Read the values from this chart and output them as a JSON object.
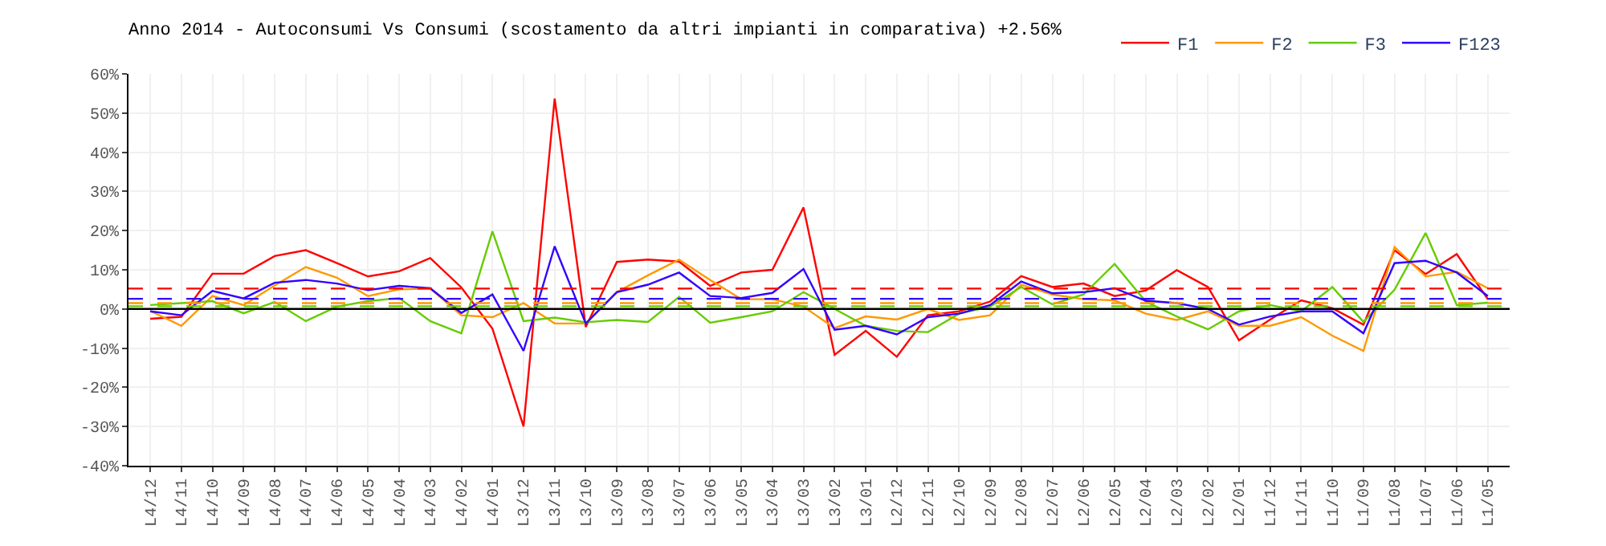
{
  "chart_data": {
    "type": "line",
    "title": "Anno 2014 - Autoconsumi Vs Consumi (scostamento da altri impianti in comparativa) +2.56%",
    "categories": [
      "L4/12",
      "L4/11",
      "L4/10",
      "L4/09",
      "L4/08",
      "L4/07",
      "L4/06",
      "L4/05",
      "L4/04",
      "L4/03",
      "L4/02",
      "L4/01",
      "L3/12",
      "L3/11",
      "L3/10",
      "L3/09",
      "L3/08",
      "L3/07",
      "L3/06",
      "L3/05",
      "L3/04",
      "L3/03",
      "L3/02",
      "L3/01",
      "L2/12",
      "L2/11",
      "L2/10",
      "L2/09",
      "L2/08",
      "L2/07",
      "L2/06",
      "L2/05",
      "L2/04",
      "L2/03",
      "L2/02",
      "L2/01",
      "L1/12",
      "L1/11",
      "L1/10",
      "L1/09",
      "L1/08",
      "L1/07",
      "L1/06",
      "L1/05"
    ],
    "series": [
      {
        "name": "F1",
        "color": "#ff0000",
        "values": [
          -2.5,
          -2,
          9,
          9,
          13.5,
          15,
          11.7,
          8.3,
          9.6,
          13,
          5.5,
          -5,
          -30,
          53.7,
          -4.6,
          12,
          12.6,
          12.1,
          5.9,
          9.3,
          10,
          25.9,
          -11.7,
          -5.6,
          -12.2,
          -1.6,
          -0.6,
          1.9,
          8.4,
          5.6,
          6.5,
          3.3,
          4.7,
          9.9,
          5.6,
          -8,
          -2.7,
          2.2,
          0.2,
          -4,
          15,
          8.9,
          14,
          2.5
        ]
      },
      {
        "name": "F2",
        "color": "#ff9900",
        "values": [
          -0.5,
          -4.3,
          3.3,
          1,
          6,
          10.7,
          8,
          3.3,
          5,
          5.2,
          -1.6,
          -2.1,
          1.5,
          -3.7,
          -3.7,
          4.3,
          8.6,
          12.6,
          7.4,
          2.5,
          2.5,
          0.6,
          -4.9,
          -1.9,
          -2.7,
          0,
          -2.8,
          -1.6,
          6.2,
          3.7,
          2.5,
          2.2,
          -1.2,
          -2.8,
          -0.6,
          -4.3,
          -4.3,
          -2.1,
          -6.8,
          -10.7,
          15.8,
          8.3,
          9.5,
          5.3
        ]
      },
      {
        "name": "F3",
        "color": "#66cc00",
        "values": [
          1,
          1.5,
          2,
          -1.1,
          1.8,
          -3.1,
          0.6,
          2,
          2.8,
          -3.1,
          -6.2,
          19.8,
          -3.1,
          -2.2,
          -3.4,
          -2.8,
          -3.3,
          3.1,
          -3.5,
          -2.1,
          -0.6,
          4.3,
          0,
          -4.3,
          -5.6,
          -5.9,
          -1.2,
          0.6,
          5.6,
          1.2,
          3.7,
          11.5,
          1.9,
          -1.9,
          -5.2,
          -0.6,
          1,
          -0.6,
          5.6,
          -3.3,
          4.9,
          19.4,
          1,
          1.6
        ]
      },
      {
        "name": "F123",
        "color": "#3300ff",
        "values": [
          -0.6,
          -1.6,
          4.6,
          2.7,
          6.7,
          7.4,
          6.5,
          4.8,
          5.9,
          5.3,
          -1,
          3.7,
          -10.7,
          16,
          -3.7,
          4.3,
          6.2,
          9.3,
          3.3,
          2.8,
          4.1,
          10.2,
          -5.3,
          -4.3,
          -6.5,
          -2.1,
          -1.2,
          1,
          7,
          4,
          4.3,
          5.3,
          2.1,
          1.5,
          0,
          -4,
          -1.9,
          -0.6,
          -0.6,
          -6.2,
          11.7,
          12.3,
          9.3,
          3.3
        ]
      }
    ],
    "ref_lines": [
      {
        "axis": "y",
        "value": 5.2,
        "color": "#ff0000",
        "line_style": "dashed"
      },
      {
        "axis": "y",
        "value": 2.6,
        "color": "#3300ff",
        "line_style": "dashed"
      },
      {
        "axis": "y",
        "value": 1.5,
        "color": "#ff9900",
        "line_style": "dashed"
      },
      {
        "axis": "y",
        "value": 0.7,
        "color": "#66cc00",
        "line_style": "dashed"
      },
      {
        "axis": "y",
        "value": 0,
        "color": "#000000",
        "line_style": "solid"
      }
    ],
    "ylim": [
      -40,
      60
    ],
    "yticks": [
      {
        "value": -40,
        "label": "-40%"
      },
      {
        "value": -30,
        "label": "-30%"
      },
      {
        "value": -20,
        "label": "-20%"
      },
      {
        "value": -10,
        "label": "-10%"
      },
      {
        "value": 0,
        "label": "0%"
      },
      {
        "value": 10,
        "label": "10%"
      },
      {
        "value": 20,
        "label": "20%"
      },
      {
        "value": 30,
        "label": "30%"
      },
      {
        "value": 40,
        "label": "40%"
      },
      {
        "value": 50,
        "label": "50%"
      },
      {
        "value": 60,
        "label": "60%"
      }
    ],
    "grid": true,
    "legend": "top right",
    "marker": "none",
    "line_style": "solid"
  }
}
